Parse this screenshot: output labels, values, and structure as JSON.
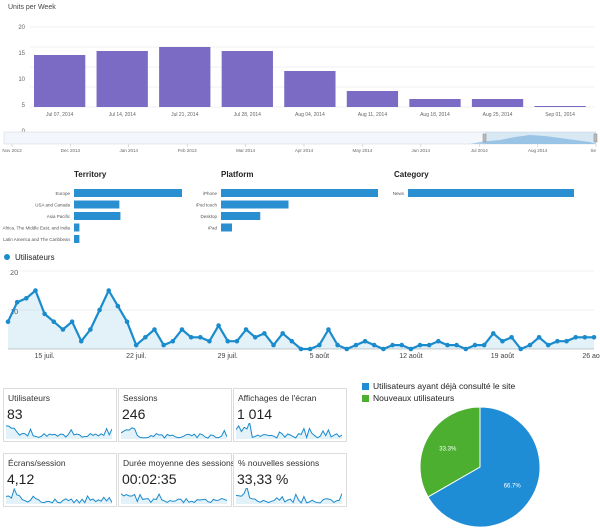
{
  "units_chart": {
    "title": "Units per Week",
    "y_ticks": [
      "20",
      "15",
      "10",
      "5",
      "0"
    ],
    "overview_ticks": [
      "Nov 2013",
      "Dec 2013",
      "Jan 2014",
      "Feb 2014",
      "Mar 2014",
      "Apr 2014",
      "May 2014",
      "Jun 2014",
      "Jul 2014",
      "Aug 2014",
      "Se"
    ]
  },
  "breakdowns": {
    "territory": {
      "title": "Territory"
    },
    "platform": {
      "title": "Platform"
    },
    "category": {
      "title": "Category"
    }
  },
  "users_chart": {
    "legend": "Utilisateurs",
    "y_ticks": [
      "20",
      "10"
    ],
    "color": "#1a8bcc"
  },
  "stats": [
    {
      "label": "Utilisateurs",
      "value": "83"
    },
    {
      "label": "Sessions",
      "value": "246"
    },
    {
      "label": "Affichages de l'écran",
      "value": "1 014"
    },
    {
      "label": "Écrans/session",
      "value": "4,12"
    },
    {
      "label": "Durée moyenne des sessions",
      "value": "00:02:35"
    },
    {
      "label": "% nouvelles sessions",
      "value": "33,33 %"
    }
  ],
  "pie_legend": [
    {
      "label": "Utilisateurs ayant déjà consulté le site",
      "color": "#1f8dd6"
    },
    {
      "label": "Nouveaux utilisateurs",
      "color": "#4caf30"
    }
  ],
  "chart_data": [
    {
      "type": "bar",
      "title": "Units per Week",
      "xlabel": "",
      "ylabel": "",
      "categories": [
        "Jul 07, 2014",
        "Jul 14, 2014",
        "Jul 21, 2014",
        "Jul 28, 2014",
        "Aug 04, 2014",
        "Aug 11, 2014",
        "Aug 18, 2014",
        "Aug 25, 2014",
        "Sep 01, 2014"
      ],
      "values": [
        13,
        14,
        15,
        14,
        9,
        4,
        2,
        2,
        0
      ],
      "ylim": [
        0,
        20
      ],
      "color": "#7b6bc4",
      "grid": true
    },
    {
      "type": "bar",
      "orientation": "horizontal",
      "title": "Territory",
      "categories": [
        "Europe",
        "USA and Canada",
        "Asia Pacific",
        "Africa, The Middle East, and India",
        "Latin America and The Caribbean"
      ],
      "values": [
        100,
        42,
        43,
        5,
        5
      ],
      "color": "#2a8fd0"
    },
    {
      "type": "bar",
      "orientation": "horizontal",
      "title": "Platform",
      "categories": [
        "iPhone",
        "iPod touch",
        "Desktop",
        "iPad"
      ],
      "values": [
        100,
        43,
        25,
        7
      ],
      "color": "#2a8fd0"
    },
    {
      "type": "bar",
      "orientation": "horizontal",
      "title": "Category",
      "categories": [
        "News"
      ],
      "values": [
        100
      ],
      "color": "#2a8fd0"
    },
    {
      "type": "line",
      "title": "",
      "series": [
        {
          "name": "Utilisateurs",
          "values": [
            7,
            12,
            13,
            15,
            9,
            7,
            5,
            7,
            2,
            5,
            10,
            15,
            11,
            7,
            1,
            3,
            5,
            1,
            2,
            5,
            3,
            3,
            2,
            6,
            2,
            2,
            5,
            3,
            4,
            1,
            4,
            2,
            0,
            0,
            1,
            5,
            1,
            0,
            1,
            2,
            1,
            0,
            1,
            1,
            0,
            1,
            1,
            2,
            1,
            1,
            0,
            1,
            1,
            4,
            2,
            3,
            0,
            1,
            3,
            1,
            2,
            2,
            3,
            3,
            3
          ]
        }
      ],
      "x_tick_labels": [
        "15 juil.",
        "22 juil.",
        "29 juil.",
        "5 août",
        "12 août",
        "19 août",
        "26 août"
      ],
      "ylim": [
        0,
        20
      ],
      "color": "#1a8bcc",
      "grid": true
    },
    {
      "type": "pie",
      "title": "",
      "categories": [
        "Utilisateurs ayant déjà consulté le site",
        "Nouveaux utilisateurs"
      ],
      "values": [
        66.7,
        33.3
      ],
      "labels": [
        "66.7%",
        "33.3%"
      ],
      "colors": [
        "#1f8dd6",
        "#4caf30"
      ]
    }
  ]
}
